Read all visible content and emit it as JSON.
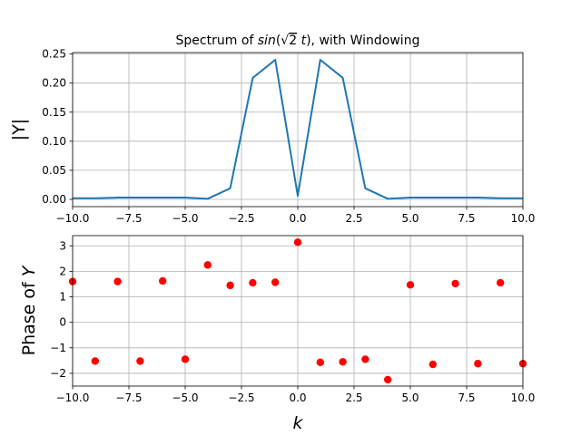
{
  "figure": {
    "title_prefix": "Spectrum of ",
    "title_func": "sin",
    "title_sqrt": "√",
    "title_radicand": "2",
    "title_var": "t",
    "title_suffix": "), with Windowing"
  },
  "chart_data": [
    {
      "type": "line",
      "title": "Spectrum of sin(√2 t), with Windowing",
      "xlabel": "",
      "ylabel": "|Y|",
      "xlim": [
        -10,
        10
      ],
      "ylim": [
        -0.0125,
        0.2525
      ],
      "grid": true,
      "color": "#1f77b4",
      "xticks": [
        "−10.0",
        "−7.5",
        "−5.0",
        "−2.5",
        "0.0",
        "2.5",
        "5.0",
        "7.5",
        "10.0"
      ],
      "xtick_values": [
        -10,
        -7.5,
        -5,
        -2.5,
        0,
        2.5,
        5,
        7.5,
        10
      ],
      "yticks": [
        "0.00",
        "0.05",
        "0.10",
        "0.15",
        "0.20",
        "0.25"
      ],
      "ytick_values": [
        0,
        0.05,
        0.1,
        0.15,
        0.2,
        0.25
      ],
      "series": [
        {
          "x": [
            -10,
            -9,
            -8,
            -7,
            -6,
            -5,
            -4,
            -3,
            -2,
            -1,
            0,
            1,
            2,
            3,
            4,
            5,
            6,
            7,
            8,
            9,
            10
          ],
          "values": [
            0.002,
            0.002,
            0.003,
            0.003,
            0.003,
            0.003,
            0.001,
            0.019,
            0.209,
            0.24,
            0.006,
            0.24,
            0.209,
            0.019,
            0.001,
            0.003,
            0.003,
            0.003,
            0.003,
            0.002,
            0.002
          ]
        }
      ]
    },
    {
      "type": "scatter",
      "xlabel": "k",
      "ylabel": "Phase of Y",
      "xlim": [
        -10,
        10
      ],
      "ylim": [
        -2.5,
        3.4
      ],
      "grid": true,
      "color": "#ff0000",
      "xticks": [
        "−10.0",
        "−7.5",
        "−5.0",
        "−2.5",
        "0.0",
        "2.5",
        "5.0",
        "7.5",
        "10.0"
      ],
      "xtick_values": [
        -10,
        -7.5,
        -5,
        -2.5,
        0,
        2.5,
        5,
        7.5,
        10
      ],
      "yticks": [
        "−2",
        "−1",
        "0",
        "1",
        "2",
        "3"
      ],
      "ytick_values": [
        -2,
        -1,
        0,
        1,
        2,
        3
      ],
      "series": [
        {
          "x": [
            -10,
            -9,
            -8,
            -7,
            -6,
            -5,
            -4,
            -3,
            -2,
            -1,
            0,
            1,
            2,
            3,
            4,
            5,
            6,
            7,
            8,
            9,
            10
          ],
          "values": [
            1.6,
            -1.52,
            1.6,
            -1.52,
            1.62,
            -1.45,
            2.25,
            1.45,
            1.55,
            1.57,
            3.14,
            -1.57,
            -1.55,
            -1.45,
            -2.25,
            1.47,
            -1.65,
            1.52,
            -1.62,
            1.55,
            -1.62
          ]
        }
      ]
    }
  ]
}
